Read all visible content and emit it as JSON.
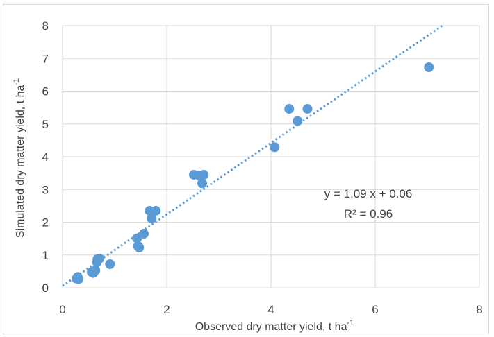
{
  "chart_data": {
    "type": "scatter",
    "xlabel": "Observed dry matter yield, t ha",
    "xlabel_sup": "-1",
    "ylabel": "Simulated dry matter yield, t ha",
    "ylabel_sup": "-1",
    "xlim": [
      0,
      8
    ],
    "ylim": [
      0,
      8
    ],
    "xticks": [
      "0",
      "2",
      "4",
      "6",
      "8"
    ],
    "yticks": [
      "0",
      "1",
      "2",
      "3",
      "4",
      "5",
      "6",
      "7",
      "8"
    ],
    "grid": true,
    "marker_color": "#5b9bd5",
    "trendline": {
      "slope": 1.09,
      "intercept": 0.06,
      "style": "dotted",
      "color": "#5b9bd5"
    },
    "annotations": {
      "equation": "y = 1.09 x + 0.06",
      "r2": "R² = 0.96"
    },
    "series": [
      {
        "points": [
          [
            0.27,
            0.28
          ],
          [
            0.29,
            0.33
          ],
          [
            0.31,
            0.27
          ],
          [
            0.56,
            0.48
          ],
          [
            0.59,
            0.45
          ],
          [
            0.63,
            0.53
          ],
          [
            0.66,
            0.78
          ],
          [
            0.67,
            0.87
          ],
          [
            0.71,
            0.89
          ],
          [
            0.91,
            0.72
          ],
          [
            1.43,
            1.51
          ],
          [
            1.45,
            1.27
          ],
          [
            1.47,
            1.23
          ],
          [
            1.56,
            1.65
          ],
          [
            1.67,
            2.35
          ],
          [
            1.71,
            2.12
          ],
          [
            1.79,
            2.35
          ],
          [
            2.52,
            3.45
          ],
          [
            2.62,
            3.43
          ],
          [
            2.68,
            3.19
          ],
          [
            2.71,
            3.45
          ],
          [
            4.07,
            4.29
          ],
          [
            4.35,
            5.46
          ],
          [
            4.51,
            5.09
          ],
          [
            4.7,
            5.46
          ],
          [
            7.03,
            6.73
          ]
        ]
      }
    ]
  }
}
